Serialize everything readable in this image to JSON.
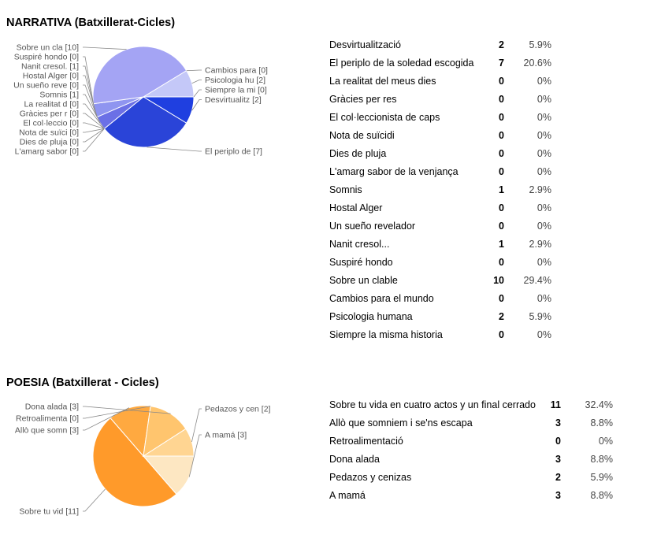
{
  "chart_data": [
    {
      "type": "pie",
      "title": "NARRATIVA (Batxillerat-Cicles)",
      "pie_labels": [
        "Desvirtualitz [2]",
        "El periplo de [7]",
        "L'amarg sabor [0]",
        "Dies de pluja [0]",
        "Nota de suïci [0]",
        "El col·leccio [0]",
        "Gràcies per r [0]",
        "La realitat d [0]",
        "Somnis [1]",
        "Un sueño reve [0]",
        "Hostal Alger [0]",
        "Nanit cresol. [1]",
        "Suspiré hondo [0]",
        "Sobre un cla [10]",
        "Cambios para  [0]",
        "Psicologia hu [2]",
        "Siempre la mi [0]"
      ],
      "categories": [
        "Desvirtualització",
        "El periplo de la soledad escogida",
        "L'amarg sabor de la venjança",
        "Dies de pluja",
        "Nota de suïcidi",
        "El col·leccionista de caps",
        "Gràcies per res",
        "La realitat del meus dies",
        "Somnis",
        "Un sueño revelador",
        "Hostal Alger",
        "Nanit cresol...",
        "Suspiré hondo",
        "Sobre un clable",
        "Cambios para el mundo",
        "Psicologia humana",
        "Siempre la misma historia"
      ],
      "values": [
        2,
        7,
        0,
        0,
        0,
        0,
        0,
        0,
        1,
        0,
        0,
        1,
        0,
        10,
        0,
        2,
        0
      ],
      "colors": [
        "#1f3fe0",
        "#2a44d8",
        "#3a55e0",
        "#4a63e4",
        "#5a71e8",
        "#6a80ec",
        "#6f78e8",
        "#7b86ec",
        "#6b70e6",
        "#8a92ee",
        "#9aa0f0",
        "#8f95f0",
        "#a0a6f2",
        "#a4a4f4",
        "#b0b4f6",
        "#c4c8f8",
        "#d4d8fa"
      ],
      "table": [
        {
          "label": "Desvirtualització",
          "count": "2",
          "pct": "5.9%"
        },
        {
          "label": "El periplo de la soledad escogida",
          "count": "7",
          "pct": "20.6%"
        },
        {
          "label": "La realitat del meus dies",
          "count": "0",
          "pct": "0%"
        },
        {
          "label": "Gràcies per res",
          "count": "0",
          "pct": "0%"
        },
        {
          "label": "El col·leccionista de caps",
          "count": "0",
          "pct": "0%"
        },
        {
          "label": "Nota de suïcidi",
          "count": "0",
          "pct": "0%"
        },
        {
          "label": "Dies de pluja",
          "count": "0",
          "pct": "0%"
        },
        {
          "label": "L'amarg sabor de la venjança",
          "count": "0",
          "pct": "0%"
        },
        {
          "label": "Somnis",
          "count": "1",
          "pct": "2.9%"
        },
        {
          "label": "Hostal Alger",
          "count": "0",
          "pct": "0%"
        },
        {
          "label": "Un sueño revelador",
          "count": "0",
          "pct": "0%"
        },
        {
          "label": "Nanit cresol...",
          "count": "1",
          "pct": "2.9%"
        },
        {
          "label": "Suspiré hondo",
          "count": "0",
          "pct": "0%"
        },
        {
          "label": "Sobre un clable",
          "count": "10",
          "pct": "29.4%"
        },
        {
          "label": "Cambios para el mundo",
          "count": "0",
          "pct": "0%"
        },
        {
          "label": "Psicologia humana",
          "count": "2",
          "pct": "5.9%"
        },
        {
          "label": "Siempre la misma historia",
          "count": "0",
          "pct": "0%"
        }
      ]
    },
    {
      "type": "pie",
      "title": "POESIA (Batxillerat - Cicles)",
      "pie_labels": [
        "A mamá [3]",
        "Sobre tu vid [11]",
        "Allò que somn [3]",
        "Retroalimenta [0]",
        "Dona alada [3]",
        "Pedazos y cen [2]"
      ],
      "categories": [
        "A mamá",
        "Sobre tu vida en cuatro actos y un final cerrado",
        "Allò que somniem i se'ns escapa",
        "Retroalimentació",
        "Dona alada",
        "Pedazos y cenizas"
      ],
      "values": [
        3,
        11,
        3,
        0,
        3,
        2
      ],
      "colors": [
        "#fde7c2",
        "#ff9a2a",
        "#ffa940",
        "#ffb655",
        "#ffc56e",
        "#ffd592"
      ],
      "table": [
        {
          "label": "Sobre tu vida en cuatro actos y un final cerrado",
          "count": "11",
          "pct": "32.4%"
        },
        {
          "label": "Allò que somniem i se'ns escapa",
          "count": "3",
          "pct": "8.8%"
        },
        {
          "label": "Retroalimentació",
          "count": "0",
          "pct": "0%"
        },
        {
          "label": "Dona alada",
          "count": "3",
          "pct": "8.8%"
        },
        {
          "label": "Pedazos y cenizas",
          "count": "2",
          "pct": "5.9%"
        },
        {
          "label": "A mamá",
          "count": "3",
          "pct": "8.8%"
        }
      ]
    }
  ]
}
